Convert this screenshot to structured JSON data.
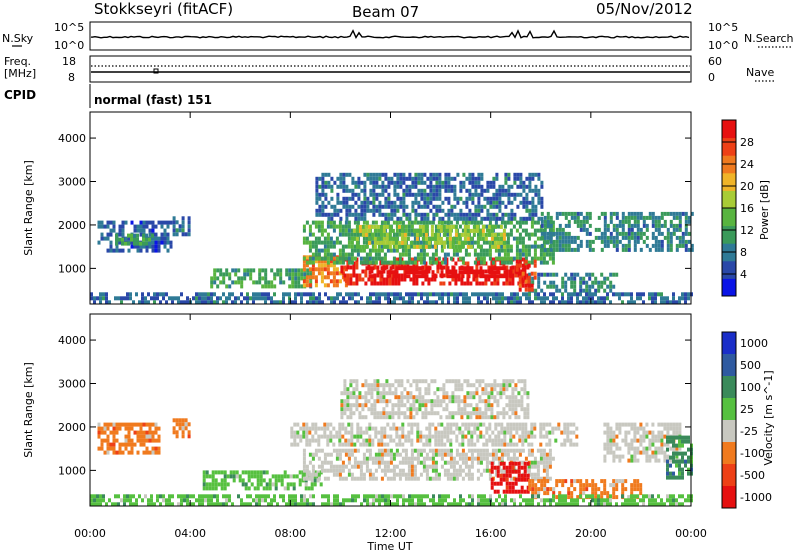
{
  "header": {
    "station": "Stokkseyri (fitACF)",
    "beam": "Beam 07",
    "date": "05/Nov/2012"
  },
  "nsky_panel": {
    "left_label": "N.Sky",
    "right_label": "N.Search",
    "tick_labels": [
      "10^5",
      "10^0"
    ],
    "right_tick_labels": [
      "10^5",
      "10^0"
    ]
  },
  "freq_panel": {
    "left_label_top": "Freq.",
    "left_label_bottom": "[MHz]",
    "right_label": "Nave",
    "tick_labels": [
      "18",
      "8"
    ],
    "right_tick_labels": [
      "60",
      "0"
    ]
  },
  "cpid_panel": {
    "label": "CPID",
    "program": "normal (fast) 151"
  },
  "chart_data": [
    {
      "type": "heatmap",
      "panel": "power",
      "ylabel": "Slant Range [km]",
      "xlabel": "",
      "x_tick_labels": [
        "00:00",
        "04:00",
        "08:00",
        "12:00",
        "16:00",
        "20:00",
        "00:00"
      ],
      "x_range_hours": [
        0,
        24
      ],
      "y_range_km": [
        180,
        4600
      ],
      "y_ticks": [
        1000,
        2000,
        3000,
        4000
      ],
      "colorbar": {
        "label": "Power [dB]",
        "tick_values": [
          4,
          8,
          12,
          16,
          20,
          24,
          28
        ],
        "range": [
          0,
          32
        ],
        "colors": [
          "#0a14e6",
          "#2a48a8",
          "#2f7a96",
          "#3a9a5a",
          "#58b440",
          "#a8cc36",
          "#f0b428",
          "#f07a1e",
          "#ee4016",
          "#e61010"
        ]
      },
      "regions": [
        {
          "t": [
            0.3,
            3.2
          ],
          "r": [
            1400,
            2100
          ],
          "v": 6
        },
        {
          "t": [
            1.0,
            2.5
          ],
          "r": [
            1550,
            1800
          ],
          "v": 11
        },
        {
          "t": [
            3.3,
            4.0
          ],
          "r": [
            1800,
            2200
          ],
          "v": 7
        },
        {
          "t": [
            4.8,
            8.8
          ],
          "r": [
            550,
            1000
          ],
          "v": 12
        },
        {
          "t": [
            8.5,
            10.2
          ],
          "r": [
            600,
            1300
          ],
          "v": 24
        },
        {
          "t": [
            10.0,
            17.5
          ],
          "r": [
            650,
            1250
          ],
          "v": 30
        },
        {
          "t": [
            11.0,
            17.0
          ],
          "r": [
            800,
            1050
          ],
          "v": 32
        },
        {
          "t": [
            8.5,
            18.5
          ],
          "r": [
            1150,
            2100
          ],
          "v": 12
        },
        {
          "t": [
            10.5,
            16.5
          ],
          "r": [
            1500,
            2000
          ],
          "v": 17
        },
        {
          "t": [
            9.0,
            18.0
          ],
          "r": [
            2100,
            3200
          ],
          "v": 7
        },
        {
          "t": [
            18.0,
            24.0
          ],
          "r": [
            1400,
            2300
          ],
          "v": 9
        },
        {
          "t": [
            17.5,
            21.0
          ],
          "r": [
            450,
            900
          ],
          "v": 9
        },
        {
          "t": [
            0.0,
            24.0
          ],
          "r": [
            180,
            450
          ],
          "v": 7
        },
        {
          "t": [
            17.0,
            17.8
          ],
          "r": [
            500,
            1200
          ],
          "v": 28
        }
      ]
    },
    {
      "type": "heatmap",
      "panel": "velocity",
      "ylabel": "Slant Range [km]",
      "xlabel": "Time UT",
      "x_tick_labels": [
        "00:00",
        "04:00",
        "08:00",
        "12:00",
        "16:00",
        "20:00",
        "00:00"
      ],
      "x_range_hours": [
        0,
        24
      ],
      "y_range_km": [
        180,
        4600
      ],
      "y_ticks": [
        1000,
        2000,
        3000,
        4000
      ],
      "colorbar": {
        "label": "Velocity [m s^-1]",
        "tick_labels": [
          "1000",
          "500",
          "100",
          "25",
          "-25",
          "-100",
          "-500",
          "-1000"
        ],
        "colors": [
          "#1a2ec8",
          "#2f5aa0",
          "#3a8a5a",
          "#56c040",
          "#c8c8c0",
          "#f07a1e",
          "#ee4016",
          "#e61010"
        ]
      },
      "regions": [
        {
          "t": [
            0.3,
            2.8
          ],
          "r": [
            1450,
            2100
          ],
          "v": 5
        },
        {
          "t": [
            3.3,
            4.0
          ],
          "r": [
            1800,
            2200
          ],
          "v": 5
        },
        {
          "t": [
            4.5,
            9.2
          ],
          "r": [
            550,
            1000
          ],
          "v": 3
        },
        {
          "t": [
            8.5,
            18.5
          ],
          "r": [
            800,
            1500
          ],
          "v": 4
        },
        {
          "t": [
            8.0,
            19.5
          ],
          "r": [
            1600,
            2100
          ],
          "v": 4
        },
        {
          "t": [
            10.0,
            17.5
          ],
          "r": [
            2200,
            3100
          ],
          "v": 4
        },
        {
          "t": [
            16.0,
            17.5
          ],
          "r": [
            500,
            1200
          ],
          "v": 7
        },
        {
          "t": [
            17.5,
            22.0
          ],
          "r": [
            400,
            800
          ],
          "v": 5
        },
        {
          "t": [
            20.5,
            23.5
          ],
          "r": [
            1200,
            2100
          ],
          "v": 4
        },
        {
          "t": [
            23.0,
            24.0
          ],
          "r": [
            800,
            1800
          ],
          "v": 2
        },
        {
          "t": [
            0.0,
            24.0
          ],
          "r": [
            180,
            450
          ],
          "v": 3
        }
      ]
    }
  ]
}
